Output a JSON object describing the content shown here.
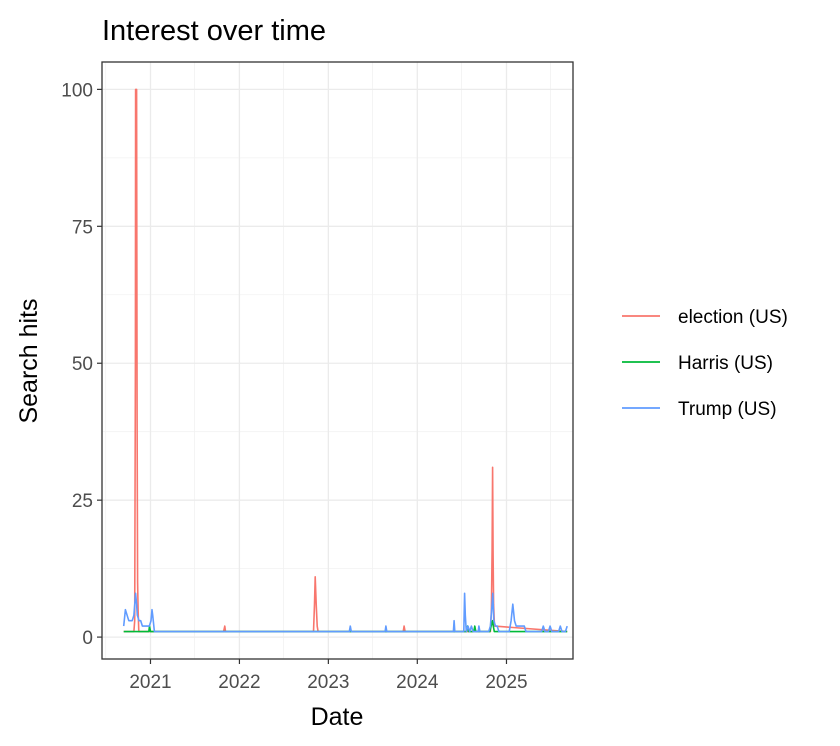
{
  "chart_data": {
    "type": "line",
    "title": "Interest over time",
    "xlabel": "Date",
    "ylabel": "Search hits",
    "xlim": [
      "2020-06-16",
      "2025-10-01"
    ],
    "ylim": [
      -4,
      105
    ],
    "x_ticks": [
      "2021",
      "2022",
      "2023",
      "2024",
      "2025"
    ],
    "y_ticks": [
      "0",
      "25",
      "50",
      "75",
      "100"
    ],
    "grid": true,
    "legend": "right",
    "series": [
      {
        "name": "election (US)",
        "color": "#F8766D",
        "x": [
          "2020-09-13",
          "2020-10-25",
          "2020-10-28",
          "2020-10-31",
          "2020-11-01",
          "2020-11-03",
          "2020-11-05",
          "2020-11-07",
          "2020-11-09",
          "2020-11-11",
          "2020-11-14",
          "2021-10-28",
          "2021-11-02",
          "2021-11-05",
          "2022-11-01",
          "2022-11-05",
          "2022-11-08",
          "2022-11-12",
          "2022-11-16",
          "2022-11-20",
          "2023-11-04",
          "2023-11-08",
          "2023-11-12",
          "2024-10-27",
          "2024-10-31",
          "2024-11-03",
          "2024-11-05",
          "2024-11-07",
          "2024-11-09",
          "2024-11-13",
          "2025-09-07"
        ],
        "values": [
          1,
          1,
          3,
          50,
          100,
          100,
          100,
          40,
          10,
          5,
          1,
          1,
          2,
          1,
          1,
          6,
          11,
          6,
          2,
          1,
          1,
          2,
          1,
          1,
          5,
          16,
          31,
          15,
          6,
          2,
          1
        ]
      },
      {
        "name": "Harris (US)",
        "color": "#00BA38",
        "x": [
          "2020-09-13",
          "2020-12-25",
          "2020-12-28",
          "2021-01-01",
          "2021-01-20",
          "2024-07-21",
          "2024-07-25",
          "2024-07-30",
          "2024-08-04",
          "2024-08-20",
          "2024-08-24",
          "2024-08-28",
          "2024-10-25",
          "2024-10-30",
          "2024-11-05",
          "2024-11-08",
          "2024-11-12",
          "2025-09-07"
        ],
        "values": [
          1,
          1,
          2,
          1,
          1,
          1,
          2,
          1,
          1,
          1,
          2,
          1,
          1,
          2,
          3,
          2,
          1,
          1
        ]
      },
      {
        "name": "Trump (US)",
        "color": "#619CFF",
        "x": [
          "2020-09-13",
          "2020-09-20",
          "2020-09-27",
          "2020-10-04",
          "2020-10-11",
          "2020-10-18",
          "2020-10-25",
          "2020-11-01",
          "2020-11-05",
          "2020-11-08",
          "2020-11-15",
          "2020-11-22",
          "2020-11-29",
          "2020-12-06",
          "2020-12-13",
          "2020-12-20",
          "2020-12-27",
          "2021-01-03",
          "2021-01-07",
          "2021-01-10",
          "2021-01-17",
          "2021-01-24",
          "2023-03-28",
          "2023-04-01",
          "2023-04-05",
          "2023-08-22",
          "2023-08-25",
          "2023-08-29",
          "2024-05-28",
          "2024-05-31",
          "2024-06-03",
          "2024-07-10",
          "2024-07-13",
          "2024-07-16",
          "2024-07-20",
          "2024-07-27",
          "2024-08-03",
          "2024-08-10",
          "2024-08-17",
          "2024-08-24",
          "2024-09-07",
          "2024-09-10",
          "2024-09-14",
          "2024-10-20",
          "2024-10-27",
          "2024-11-03",
          "2024-11-06",
          "2024-11-10",
          "2024-11-17",
          "2024-11-24",
          "2024-12-01",
          "2025-01-12",
          "2025-01-20",
          "2025-01-27",
          "2025-02-03",
          "2025-02-10",
          "2025-03-01",
          "2025-03-15",
          "2025-03-22",
          "2025-03-29",
          "2025-05-25",
          "2025-06-01",
          "2025-06-08",
          "2025-06-22",
          "2025-06-29",
          "2025-07-06",
          "2025-08-03",
          "2025-08-10",
          "2025-08-17",
          "2025-08-31",
          "2025-09-07"
        ],
        "values": [
          2,
          5,
          4,
          3,
          3,
          3,
          4,
          8,
          6,
          4,
          3,
          3,
          2,
          2,
          2,
          2,
          2,
          3,
          5,
          4,
          1,
          1,
          1,
          2,
          1,
          1,
          2,
          1,
          1,
          3,
          1,
          1,
          8,
          4,
          1,
          2,
          1,
          2,
          1,
          1,
          1,
          2,
          1,
          1,
          2,
          6,
          8,
          3,
          2,
          2,
          1,
          1,
          3,
          6,
          3,
          2,
          2,
          2,
          1,
          1,
          1,
          2,
          1,
          1,
          2,
          1,
          1,
          2,
          1,
          1,
          2
        ]
      }
    ]
  }
}
